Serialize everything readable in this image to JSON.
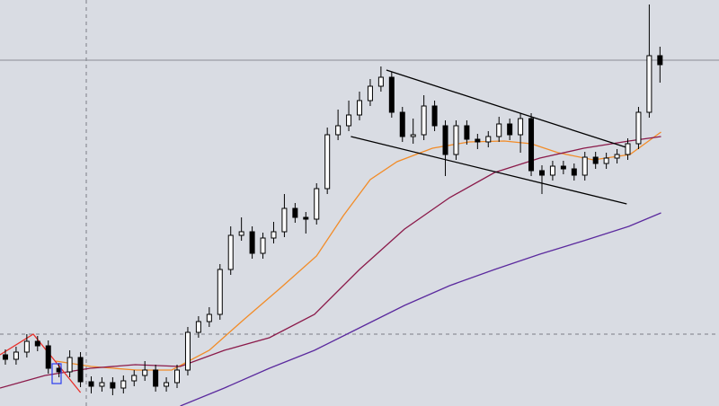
{
  "chart_data": {
    "type": "candlestick",
    "x": [
      0,
      1,
      2,
      3,
      4,
      5,
      6,
      7,
      8,
      9,
      10,
      11,
      12,
      13,
      14,
      15,
      16,
      17,
      18,
      19,
      20,
      21,
      22,
      23,
      24,
      25,
      26,
      27,
      28,
      29,
      30,
      31,
      32,
      33,
      34,
      35,
      36,
      37,
      38,
      39,
      40,
      41,
      42,
      43,
      44,
      45,
      46,
      47,
      48,
      49,
      50,
      51,
      52,
      53,
      54,
      55,
      56,
      57,
      58,
      59,
      60,
      61
    ],
    "open": [
      57,
      52,
      60,
      72,
      67,
      42,
      38,
      54,
      27,
      22,
      26,
      20,
      28,
      34,
      40,
      22,
      26,
      40,
      82,
      94,
      102,
      152,
      190,
      194,
      170,
      187,
      194,
      220,
      210,
      208,
      242,
      302,
      312,
      324,
      340,
      356,
      366,
      327,
      300,
      302,
      334,
      312,
      280,
      312,
      297,
      294,
      300,
      314,
      302,
      320,
      262,
      257,
      267,
      264,
      257,
      277,
      270,
      276,
      280,
      292,
      327,
      390
    ],
    "high": [
      63,
      66,
      80,
      78,
      73,
      48,
      62,
      60,
      33,
      32,
      32,
      34,
      40,
      50,
      46,
      32,
      46,
      88,
      100,
      110,
      158,
      200,
      210,
      200,
      193,
      205,
      236,
      226,
      216,
      248,
      310,
      330,
      340,
      350,
      364,
      378,
      372,
      333,
      320,
      346,
      340,
      318,
      318,
      318,
      303,
      306,
      322,
      320,
      326,
      326,
      268,
      273,
      273,
      270,
      283,
      283,
      282,
      286,
      298,
      333,
      447,
      400
    ],
    "low": [
      46,
      46,
      54,
      61,
      36,
      32,
      32,
      21,
      14,
      16,
      12,
      14,
      22,
      28,
      16,
      16,
      20,
      34,
      76,
      88,
      96,
      146,
      184,
      164,
      164,
      181,
      188,
      204,
      192,
      202,
      236,
      296,
      306,
      318,
      334,
      350,
      321,
      294,
      292,
      296,
      306,
      256,
      274,
      291,
      286,
      288,
      294,
      296,
      282,
      256,
      236,
      251,
      258,
      251,
      251,
      264,
      264,
      270,
      274,
      286,
      321,
      360
    ],
    "close": [
      52,
      60,
      72,
      67,
      42,
      38,
      54,
      27,
      22,
      26,
      20,
      28,
      34,
      40,
      22,
      26,
      40,
      82,
      94,
      102,
      152,
      190,
      194,
      170,
      187,
      194,
      220,
      210,
      208,
      242,
      302,
      312,
      324,
      340,
      356,
      366,
      327,
      300,
      302,
      334,
      312,
      280,
      312,
      297,
      294,
      300,
      314,
      302,
      320,
      262,
      257,
      267,
      264,
      257,
      277,
      270,
      276,
      280,
      292,
      327,
      390,
      380
    ],
    "up_color": "#ffffff",
    "down_color": "#000000",
    "wick_color": "#000000",
    "xlim": [
      -0.5,
      66.5
    ],
    "ylim": [
      0,
      452
    ],
    "series": [
      {
        "color": "#f28c28",
        "x": [
          4.7,
          8,
          12.2,
          15.5,
          19,
          22.3,
          25.7,
          29,
          31.5,
          34,
          36.5,
          39.8,
          43.2,
          46.5,
          49,
          51.5,
          54.8,
          58.2,
          61.1
        ],
        "values": [
          50,
          44,
          40,
          40,
          62,
          97,
          132,
          167,
          212,
          252,
          272,
          287,
          294,
          295,
          292,
          282,
          274,
          280,
          305
        ]
      },
      {
        "color": "#8b1a4a",
        "x": [
          -0.5,
          3.7,
          7.9,
          12.1,
          16.3,
          20.4,
          24.6,
          28.8,
          33,
          37.2,
          41.4,
          45.6,
          49.8,
          53.9,
          58.1,
          61.1
        ],
        "values": [
          20,
          34,
          42,
          46,
          44,
          62,
          76,
          102,
          152,
          197,
          232,
          260,
          276,
          287,
          295,
          300
        ]
      },
      {
        "color": "#5b2a9e",
        "x": [
          16.3,
          20.4,
          24.6,
          28.8,
          33,
          37.2,
          41.4,
          45.6,
          49.8,
          53.9,
          58.1,
          61.1
        ],
        "values": [
          0,
          20,
          42,
          62,
          87,
          112,
          134,
          152,
          169,
          184,
          200,
          215
        ]
      },
      {
        "color": "#000000",
        "x": [
          35.5,
          58.1
        ],
        "values": [
          374,
          287
        ]
      },
      {
        "color": "#000000",
        "x": [
          32.2,
          57.9
        ],
        "values": [
          300,
          225
        ]
      },
      {
        "color": "#e8302a",
        "x": [
          -0.5,
          2.6,
          7.0
        ],
        "values": [
          57,
          80,
          15
        ]
      }
    ]
  }
}
